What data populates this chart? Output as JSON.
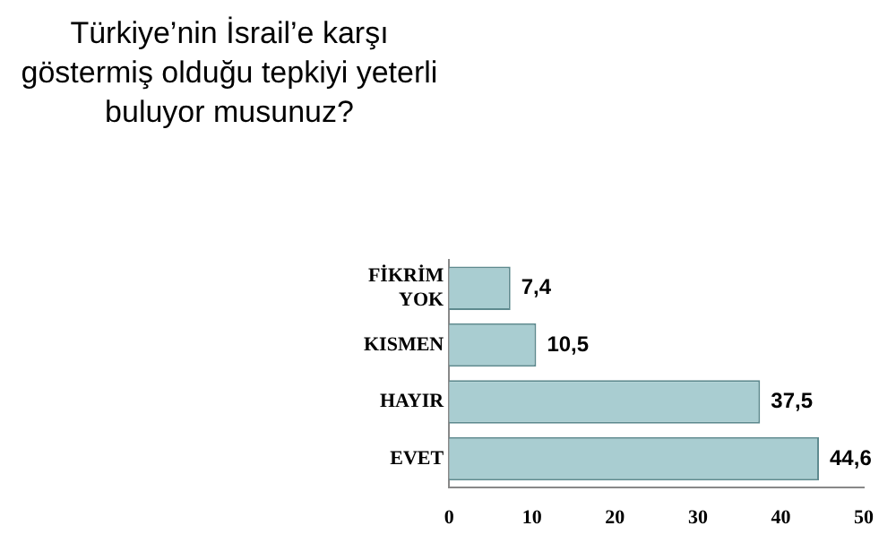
{
  "chart_data": {
    "type": "bar",
    "orientation": "horizontal",
    "title": "Türkiye’nin İsrail’e karşı göstermiş olduğu tepkiyi yeterli buluyor musunuz?",
    "categories": [
      "FİKRİM YOK",
      "KISMEN",
      "HAYIR",
      "EVET"
    ],
    "values": [
      7.4,
      10.5,
      37.5,
      44.6
    ],
    "value_labels": [
      "7,4",
      "10,5",
      "37,5",
      "44,6"
    ],
    "color": "#a9cdd1",
    "xlim": [
      0,
      50
    ],
    "xticks": [
      0,
      10,
      20,
      30,
      40,
      50
    ],
    "grid": false,
    "legend": false
  }
}
